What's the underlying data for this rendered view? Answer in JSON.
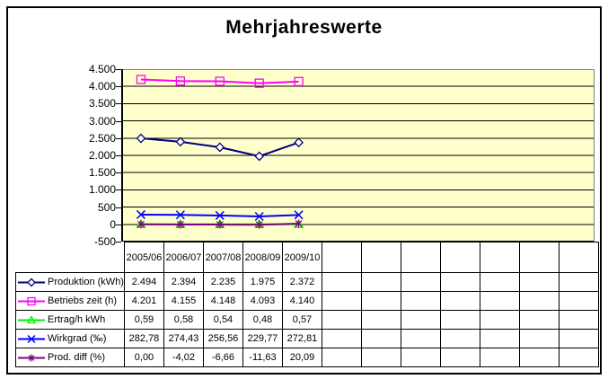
{
  "chart": {
    "title": "Mehrjahreswerte",
    "plot_background": "#FFFFCC",
    "gridline_color": "#000000",
    "plot_border_color": "#808080",
    "axis_color": "#000000"
  },
  "chart_data": {
    "type": "line",
    "title": "Mehrjahreswerte",
    "categories": [
      "2005/06",
      "2006/07",
      "2007/08",
      "2008/09",
      "2009/10"
    ],
    "x_slots_total": 12,
    "grid": true,
    "legend_position": "table-left",
    "y_axis": {
      "min": -500,
      "max": 4500,
      "step": 500,
      "labels": [
        "4.500",
        "4.000",
        "3.500",
        "3.000",
        "2.500",
        "2.000",
        "1.500",
        "1.000",
        "500",
        "0",
        "-500"
      ]
    },
    "series": [
      {
        "name": "Produktion (kWh)",
        "marker": "diamond",
        "color": "#000080",
        "values": [
          2494,
          2394,
          2235,
          1975,
          2372
        ],
        "labels": [
          "2.494",
          "2.394",
          "2.235",
          "1.975",
          "2.372"
        ]
      },
      {
        "name": "Betriebs zeit (h)",
        "marker": "square",
        "color": "#FF00FF",
        "values": [
          4201,
          4155,
          4148,
          4093,
          4140
        ],
        "labels": [
          "4.201",
          "4.155",
          "4.148",
          "4.093",
          "4.140"
        ]
      },
      {
        "name": "Ertrag/h kWh",
        "marker": "triangle",
        "color": "#00EE00",
        "values": [
          0.59,
          0.58,
          0.54,
          0.48,
          0.57
        ],
        "labels": [
          "0,59",
          "0,58",
          "0,54",
          "0,48",
          "0,57"
        ]
      },
      {
        "name": "Wirkgrad (‰)",
        "marker": "x",
        "color": "#0000FF",
        "values": [
          282.78,
          274.43,
          256.56,
          229.77,
          272.81
        ],
        "labels": [
          "282,78",
          "274,43",
          "256,56",
          "229,77",
          "272,81"
        ]
      },
      {
        "name": "Prod. diff (%)",
        "marker": "asterisk",
        "color": "#800080",
        "values": [
          0,
          -4.02,
          -6.66,
          -11.63,
          20.09
        ],
        "labels": [
          "0,00",
          "-4,02",
          "-6,66",
          "-11,63",
          "20,09"
        ]
      }
    ]
  }
}
